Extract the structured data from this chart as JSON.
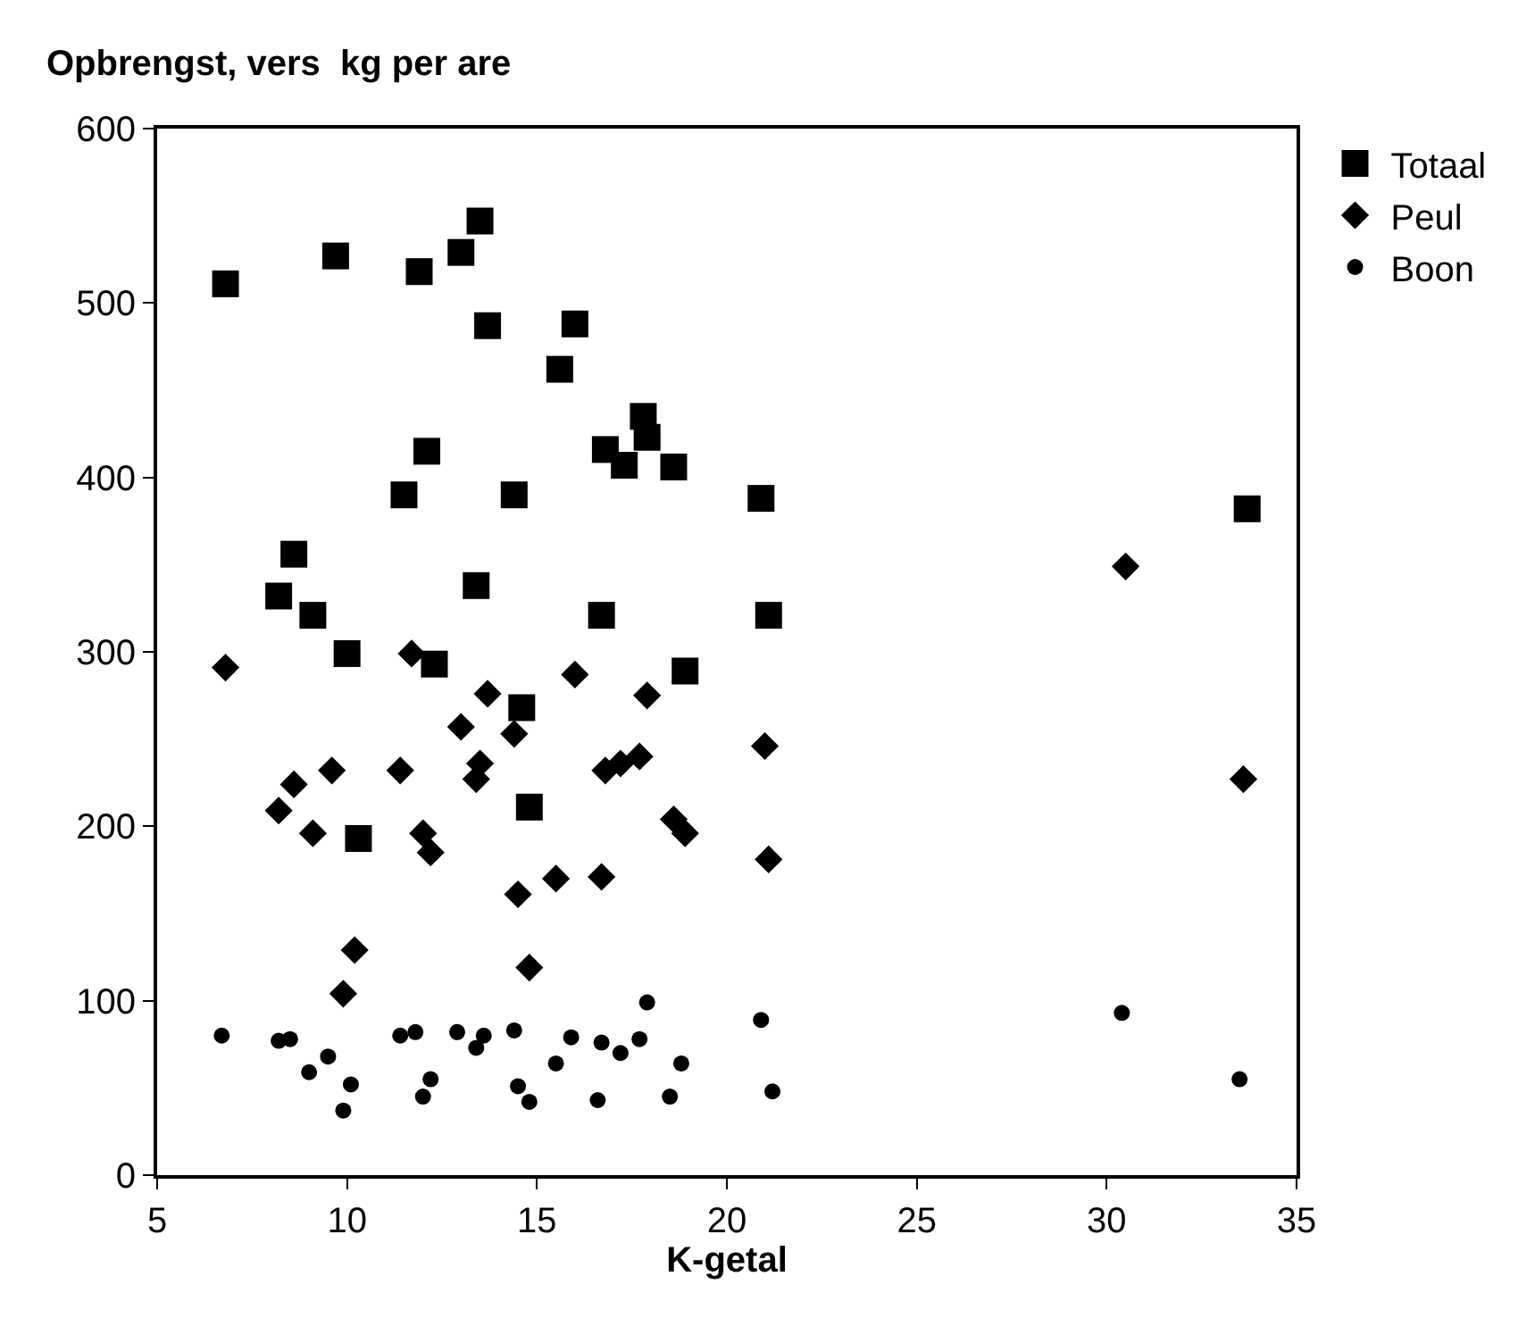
{
  "chart_data": {
    "type": "scatter",
    "ylabel": "Opbrengst, vers  kg per are",
    "xlabel": "K-getal",
    "xlim": [
      5,
      35
    ],
    "xticks": [
      5,
      10,
      15,
      20,
      25,
      30,
      35
    ],
    "ylim": [
      0,
      600
    ],
    "yticks": [
      0,
      100,
      200,
      300,
      400,
      500,
      600
    ],
    "grid": false,
    "legend": "top right",
    "series": [
      {
        "name": "Totaal",
        "color": "#000000",
        "marker": "square",
        "x": [
          6.8,
          9.7,
          11.9,
          13.0,
          13.5,
          13.7,
          16.0,
          15.6,
          16.8,
          17.3,
          17.8,
          17.9,
          18.6,
          12.1,
          11.5,
          14.4,
          13.4,
          16.7,
          20.9,
          21.1,
          18.9,
          8.2,
          8.6,
          9.1,
          10.0,
          12.3,
          14.6,
          14.8,
          10.3,
          33.7
        ],
        "values": [
          511,
          527,
          518,
          529,
          547,
          487,
          488,
          462,
          416,
          407,
          435,
          423,
          406,
          415,
          390,
          390,
          338,
          321,
          388,
          321,
          289,
          332,
          356,
          321,
          299,
          293,
          268,
          211,
          193,
          382
        ]
      },
      {
        "name": "Peul",
        "color": "#000000",
        "marker": "diamond",
        "x": [
          6.8,
          8.2,
          8.6,
          9.1,
          9.6,
          11.7,
          11.4,
          12.0,
          12.2,
          13.0,
          13.4,
          13.5,
          13.7,
          14.4,
          14.5,
          14.8,
          15.5,
          16.0,
          16.7,
          16.8,
          17.2,
          17.7,
          17.9,
          18.6,
          18.9,
          21.0,
          21.1,
          10.2,
          9.9,
          30.5,
          33.6
        ],
        "values": [
          291,
          209,
          224,
          196,
          232,
          299,
          232,
          196,
          185,
          257,
          227,
          236,
          276,
          253,
          161,
          119,
          170,
          287,
          171,
          232,
          236,
          240,
          275,
          204,
          196,
          246,
          181,
          129,
          104,
          349,
          227
        ]
      },
      {
        "name": "Boon",
        "color": "#000000",
        "marker": "circle",
        "x": [
          6.7,
          8.2,
          8.5,
          9.0,
          9.5,
          10.1,
          9.9,
          11.4,
          11.8,
          12.0,
          12.2,
          12.9,
          13.4,
          13.6,
          14.4,
          14.5,
          14.8,
          15.5,
          15.9,
          16.6,
          16.7,
          17.2,
          17.7,
          17.9,
          18.5,
          18.8,
          20.9,
          21.2,
          30.4,
          33.5
        ],
        "values": [
          80,
          77,
          78,
          59,
          68,
          52,
          37,
          80,
          82,
          45,
          55,
          82,
          73,
          80,
          83,
          51,
          42,
          64,
          79,
          43,
          76,
          70,
          78,
          99,
          45,
          64,
          89,
          48,
          93,
          55
        ]
      }
    ]
  }
}
